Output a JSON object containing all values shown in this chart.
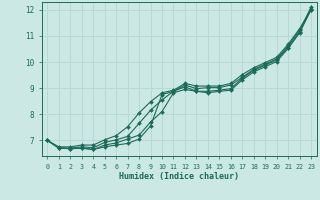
{
  "xlabel": "Humidex (Indice chaleur)",
  "bg_color": "#cce8e4",
  "grid_color": "#b8d8d4",
  "line_color": "#1a6b5a",
  "xlim": [
    -0.5,
    23.5
  ],
  "ylim": [
    6.4,
    12.3
  ],
  "xticks": [
    0,
    1,
    2,
    3,
    4,
    5,
    6,
    7,
    8,
    9,
    10,
    11,
    12,
    13,
    14,
    15,
    16,
    17,
    18,
    19,
    20,
    21,
    22,
    23
  ],
  "yticks": [
    7,
    8,
    9,
    10,
    11,
    12
  ],
  "lines": [
    [
      7.0,
      6.72,
      6.68,
      6.7,
      6.65,
      6.75,
      6.82,
      6.88,
      7.05,
      7.55,
      8.75,
      8.88,
      9.05,
      8.88,
      8.82,
      8.88,
      8.92,
      9.32,
      9.62,
      9.82,
      10.02,
      10.52,
      11.12,
      12.0
    ],
    [
      7.0,
      6.7,
      6.68,
      6.7,
      6.65,
      6.82,
      6.9,
      7.05,
      7.2,
      7.7,
      8.1,
      8.82,
      8.95,
      8.88,
      8.88,
      8.92,
      8.98,
      9.38,
      9.68,
      9.88,
      10.08,
      10.55,
      11.15,
      12.05
    ],
    [
      7.0,
      6.7,
      6.7,
      6.75,
      6.72,
      6.92,
      7.02,
      7.15,
      7.65,
      8.15,
      8.55,
      8.88,
      9.12,
      8.98,
      9.02,
      9.02,
      9.12,
      9.42,
      9.72,
      9.92,
      10.12,
      10.62,
      11.22,
      12.1
    ],
    [
      7.0,
      6.75,
      6.75,
      6.82,
      6.82,
      7.02,
      7.18,
      7.52,
      8.05,
      8.48,
      8.82,
      8.92,
      9.18,
      9.08,
      9.08,
      9.08,
      9.18,
      9.52,
      9.78,
      9.98,
      10.18,
      10.68,
      11.28,
      12.0
    ]
  ]
}
